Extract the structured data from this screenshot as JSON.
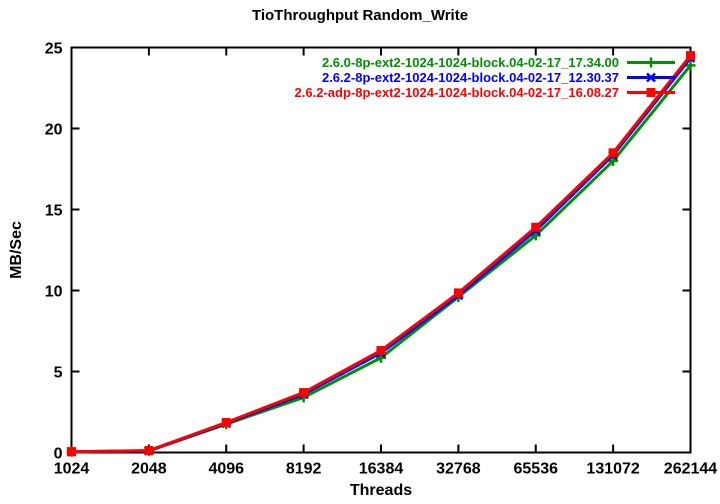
{
  "chart_data": {
    "type": "line",
    "title": "TioThroughput Random_Write",
    "xlabel": "Threads",
    "ylabel": "MB/Sec",
    "x_scale": "log2",
    "grid": false,
    "legend_position": "top-right-inside",
    "categories": [
      "1024",
      "2048",
      "4096",
      "8192",
      "16384",
      "32768",
      "65536",
      "131072",
      "262144"
    ],
    "y_ticks": [
      0,
      5,
      10,
      15,
      20,
      25
    ],
    "ylim": [
      0,
      25
    ],
    "series": [
      {
        "name": "2.6.0-8p-ext2-1024-1024-block.04-02-17_17.34.00",
        "color": "#009000",
        "marker": "plus",
        "values": [
          0.05,
          0.1,
          1.75,
          3.4,
          5.85,
          9.6,
          13.4,
          18.0,
          23.9
        ]
      },
      {
        "name": "2.6.2-8p-ext2-1024-1024-block.04-02-17_12.30.37",
        "color": "#0000ff",
        "marker": "cross",
        "values": [
          0.05,
          0.1,
          1.8,
          3.6,
          6.15,
          9.7,
          13.7,
          18.35,
          24.35
        ]
      },
      {
        "name": "2.6.2-adp-8p-ext2-1024-1024-block.04-02-17_16.08.27",
        "color": "#ff0000",
        "marker": "square",
        "values": [
          0.05,
          0.12,
          1.85,
          3.7,
          6.3,
          9.85,
          13.9,
          18.5,
          24.5
        ]
      }
    ]
  },
  "colors": {
    "background": "#ffffff",
    "axis": "#000000",
    "text": "#000000"
  }
}
